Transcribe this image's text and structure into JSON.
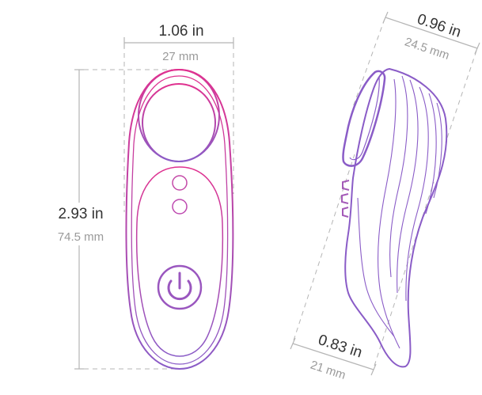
{
  "front_view": {
    "width_in": "1.06 in",
    "width_mm": "27 mm",
    "height_in": "2.93 in",
    "height_mm": "74.5 mm",
    "power_button_icon": "power-icon"
  },
  "side_view": {
    "top_in": "0.96 in",
    "top_mm": "24.5 mm",
    "bottom_in": "0.83 in",
    "bottom_mm": "21 mm"
  },
  "colors": {
    "gradient_top": "#e0318f",
    "gradient_bottom": "#8a5cc7",
    "dimension_line": "#b5b5b5",
    "primary_text": "#333333",
    "secondary_text": "#9a9a9a"
  }
}
